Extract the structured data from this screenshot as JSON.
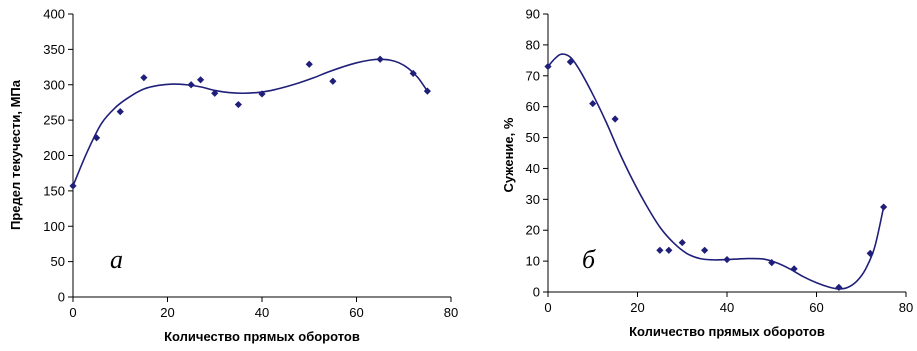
{
  "chart_data": [
    {
      "type": "scatter",
      "panel_label": "а",
      "xlabel": "Количество прямых оборотов",
      "ylabel": "Предел текучести, МПа",
      "xlim": [
        0,
        80
      ],
      "ylim": [
        0,
        400
      ],
      "xticks": [
        0,
        20,
        40,
        60,
        80
      ],
      "yticks": [
        0,
        50,
        100,
        150,
        200,
        250,
        300,
        350,
        400
      ],
      "grid": false,
      "legend": "none",
      "color": "#1f1f7a",
      "series": [
        {
          "points": [
            [
              0,
              157
            ],
            [
              5,
              225
            ],
            [
              10,
              262
            ],
            [
              15,
              310
            ],
            [
              25,
              300
            ],
            [
              27,
              307
            ],
            [
              30,
              288
            ],
            [
              35,
              272
            ],
            [
              40,
              287
            ],
            [
              50,
              329
            ],
            [
              55,
              305
            ],
            [
              65,
              336
            ],
            [
              72,
              316
            ],
            [
              75,
              291
            ]
          ],
          "trend": [
            [
              0,
              157
            ],
            [
              3,
              205
            ],
            [
              6,
              245
            ],
            [
              9,
              268
            ],
            [
              12,
              283
            ],
            [
              15,
              294
            ],
            [
              18,
              299
            ],
            [
              21,
              301
            ],
            [
              24,
              300
            ],
            [
              27,
              297
            ],
            [
              30,
              292
            ],
            [
              33,
              289
            ],
            [
              36,
              288
            ],
            [
              39,
              289
            ],
            [
              42,
              292
            ],
            [
              45,
              297
            ],
            [
              48,
              303
            ],
            [
              51,
              310
            ],
            [
              54,
              318
            ],
            [
              57,
              325
            ],
            [
              60,
              331
            ],
            [
              63,
              335
            ],
            [
              65,
              336
            ],
            [
              67,
              335
            ],
            [
              69,
              331
            ],
            [
              71,
              323
            ],
            [
              73,
              310
            ],
            [
              75,
              291
            ]
          ]
        }
      ]
    },
    {
      "type": "scatter",
      "panel_label": "б",
      "xlabel": "Количество прямых оборотов",
      "ylabel": "Сужение, %",
      "xlim": [
        0,
        80
      ],
      "ylim": [
        0,
        90
      ],
      "xticks": [
        0,
        20,
        40,
        60,
        80
      ],
      "yticks": [
        0,
        10,
        20,
        30,
        40,
        50,
        60,
        70,
        80,
        90
      ],
      "grid": false,
      "legend": "none",
      "color": "#1f1f7a",
      "series": [
        {
          "points": [
            [
              0,
              73
            ],
            [
              5,
              74.5
            ],
            [
              10,
              61
            ],
            [
              15,
              56
            ],
            [
              25,
              13.5
            ],
            [
              27,
              13.5
            ],
            [
              30,
              16
            ],
            [
              35,
              13.5
            ],
            [
              40,
              10.5
            ],
            [
              50,
              9.5
            ],
            [
              55,
              7.5
            ],
            [
              65,
              1.5
            ],
            [
              72,
              12.5
            ],
            [
              75,
              27.5
            ]
          ],
          "trend": [
            [
              0,
              73
            ],
            [
              1.5,
              75.5
            ],
            [
              3,
              77
            ],
            [
              5,
              76
            ],
            [
              7,
              72
            ],
            [
              10,
              64
            ],
            [
              13,
              55
            ],
            [
              16,
              45
            ],
            [
              19,
              36
            ],
            [
              22,
              28
            ],
            [
              25,
              21
            ],
            [
              28,
              16
            ],
            [
              31,
              12.5
            ],
            [
              34,
              10.8
            ],
            [
              37,
              10.4
            ],
            [
              40,
              10.5
            ],
            [
              44,
              10.8
            ],
            [
              48,
              10.7
            ],
            [
              51,
              9.5
            ],
            [
              54,
              7.5
            ],
            [
              57,
              5
            ],
            [
              60,
              3
            ],
            [
              63,
              1.5
            ],
            [
              65,
              1
            ],
            [
              67,
              1.5
            ],
            [
              69,
              3.5
            ],
            [
              71,
              7.5
            ],
            [
              73,
              14.5
            ],
            [
              75,
              27.5
            ]
          ]
        }
      ]
    }
  ]
}
